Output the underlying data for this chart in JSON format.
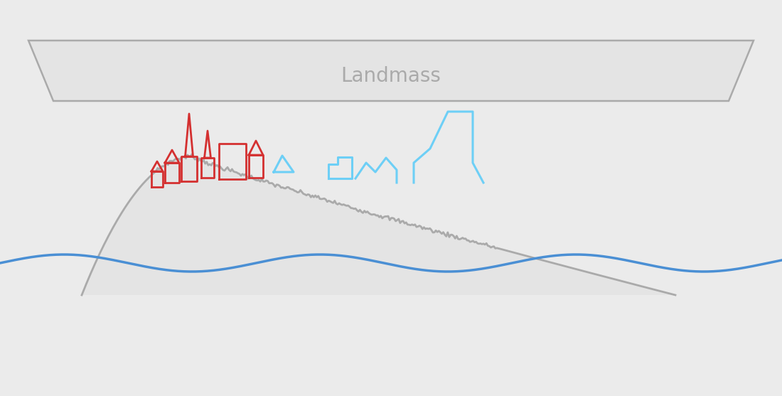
{
  "background_color": "#ebebeb",
  "hill_fill_color": "#e4e4e4",
  "hill_line_color": "#aaaaaa",
  "trap_fill_color": "#e4e4e4",
  "trap_edge_color": "#aaaaaa",
  "water_color": "#4a8fd4",
  "glacier_color": "#6dcff6",
  "building_color": "#d43030",
  "landmass_label": "Landmass",
  "label_color": "#aaaaaa",
  "label_fontsize": 20
}
